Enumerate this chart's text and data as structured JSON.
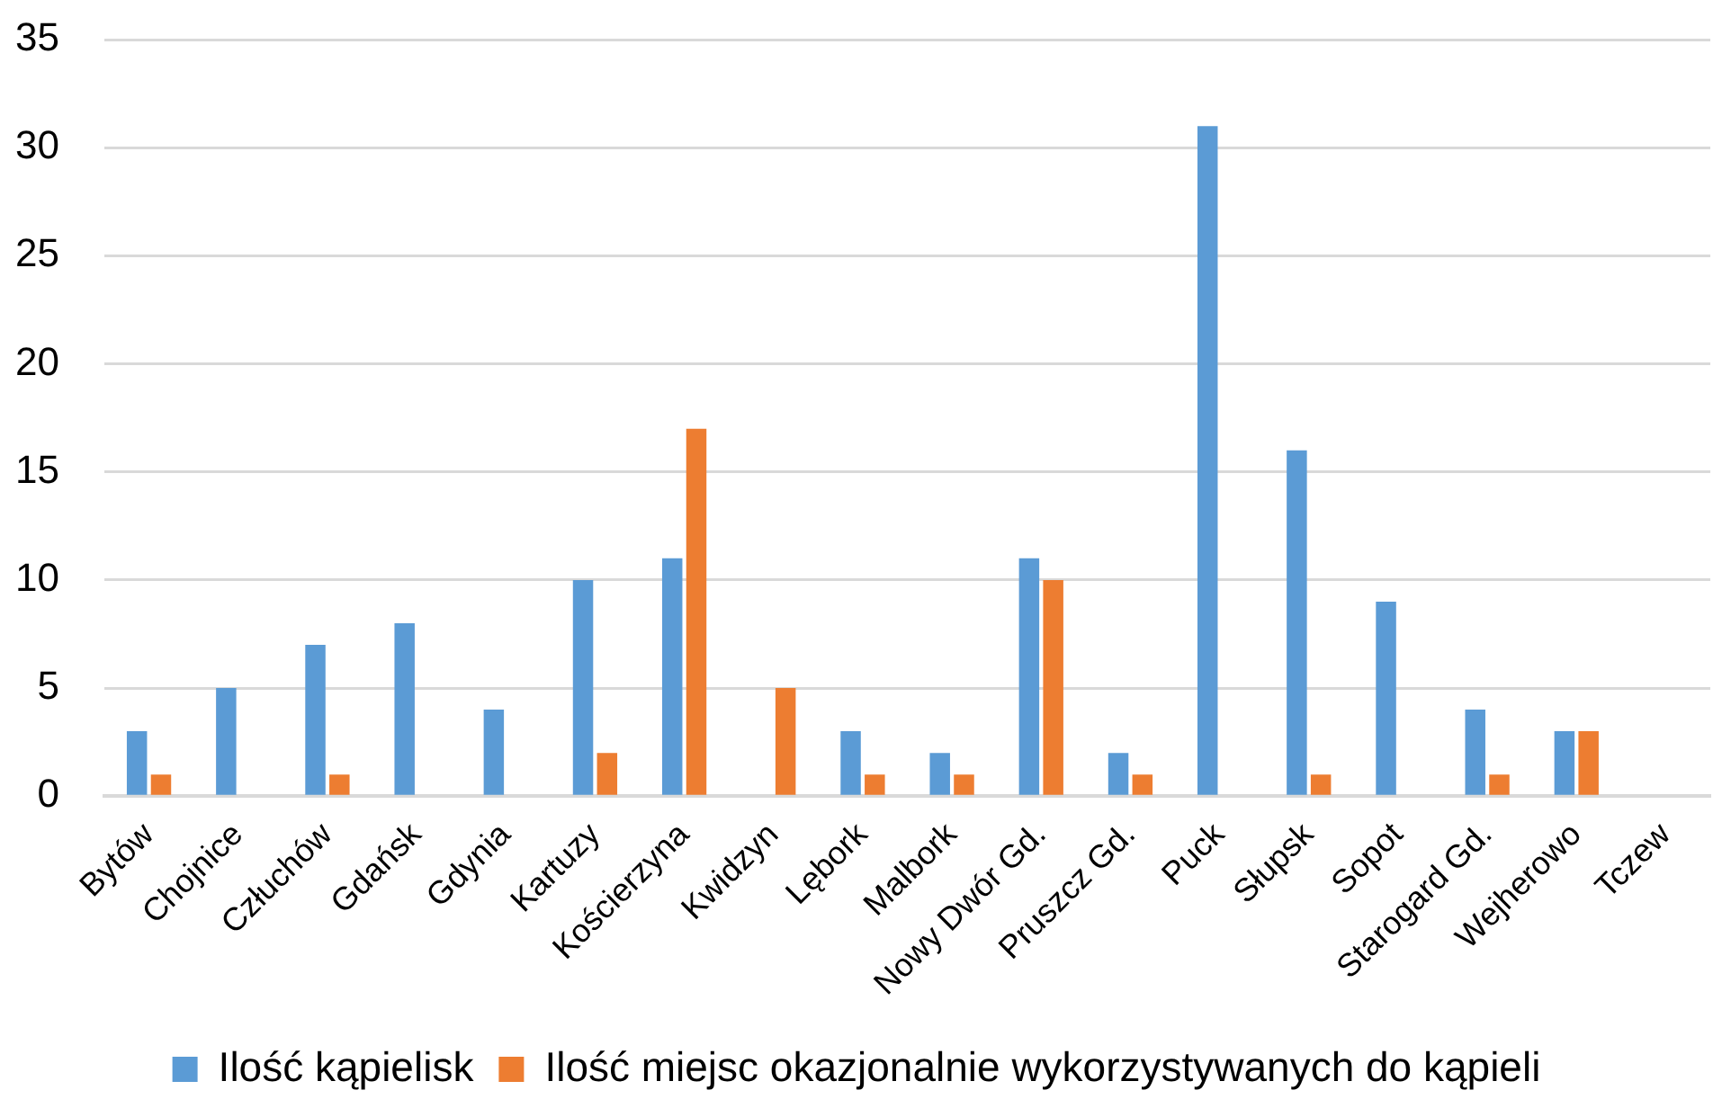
{
  "chart_data": {
    "type": "bar",
    "categories": [
      "Bytów",
      "Chojnice",
      "Człuchów",
      "Gdańsk",
      "Gdynia",
      "Kartuzy",
      "Kościerzyna",
      "Kwidzyn",
      "Lębork",
      "Malbork",
      "Nowy Dwór Gd.",
      "Pruszcz Gd.",
      "Puck",
      "Słupsk",
      "Sopot",
      "Starogard Gd.",
      "Wejherowo",
      "Tczew"
    ],
    "series": [
      {
        "name": "Ilość kąpielisk",
        "color": "#5b9bd5",
        "values": [
          3,
          5,
          7,
          8,
          4,
          10,
          11,
          0,
          3,
          2,
          11,
          2,
          31,
          16,
          9,
          4,
          3,
          0
        ]
      },
      {
        "name": "Ilość miejsc okazjonalnie wykorzystywanych do kąpieli",
        "color": "#ed7d31",
        "values": [
          1,
          0,
          1,
          0,
          0,
          2,
          17,
          5,
          1,
          1,
          10,
          1,
          0,
          1,
          0,
          1,
          3,
          0
        ]
      }
    ],
    "ylim": [
      0,
      35
    ],
    "yticks": [
      0,
      5,
      10,
      15,
      20,
      25,
      30,
      35
    ],
    "grid": "y",
    "legend": "bottom"
  }
}
